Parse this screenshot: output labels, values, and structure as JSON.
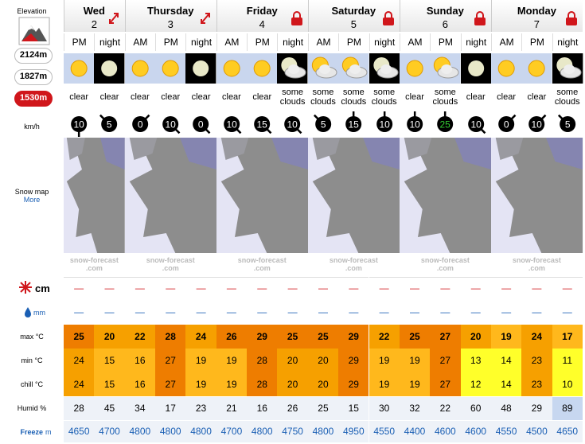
{
  "elevation_label": "Elevation",
  "elevations": [
    "2124m",
    "1827m",
    "1530m"
  ],
  "selected_elevation": 2,
  "labels": {
    "wind": "km/h",
    "snow_map": "Snow map",
    "more": "More",
    "snow": "cm",
    "rain": "mm",
    "max": "max °C",
    "min": "min °C",
    "chill": "chill °C",
    "humid": "Humid %",
    "freeze": "Freeze",
    "freeze_unit": "m"
  },
  "days": [
    {
      "name": "Wed",
      "date": 2,
      "icon": "expand",
      "periods": 2
    },
    {
      "name": "Thursday",
      "date": 3,
      "icon": "expand",
      "periods": 3
    },
    {
      "name": "Friday",
      "date": 4,
      "icon": "lock",
      "periods": 3
    },
    {
      "name": "Saturday",
      "date": 5,
      "icon": "lock",
      "periods": 3
    },
    {
      "name": "Sunday",
      "date": 6,
      "icon": "lock",
      "periods": 3
    },
    {
      "name": "Monday",
      "date": 7,
      "icon": "lock",
      "periods": 3
    }
  ],
  "periods": [
    "PM",
    "night",
    "AM",
    "PM",
    "night",
    "AM",
    "PM",
    "night",
    "AM",
    "PM",
    "night",
    "AM",
    "PM",
    "night",
    "AM",
    "PM",
    "night"
  ],
  "summary": [
    "clear",
    "clear",
    "clear",
    "clear",
    "clear",
    "clear",
    "clear",
    "some clouds",
    "some clouds",
    "some clouds",
    "some clouds",
    "clear",
    "some clouds",
    "clear",
    "clear",
    "clear",
    "some clouds"
  ],
  "wind": [
    10,
    5,
    0,
    10,
    0,
    10,
    15,
    10,
    5,
    15,
    10,
    10,
    25,
    10,
    0,
    10,
    5
  ],
  "wind_dir": [
    180,
    315,
    45,
    135,
    135,
    135,
    135,
    135,
    315,
    0,
    0,
    0,
    0,
    135,
    45,
    45,
    315
  ],
  "snow": [
    "—",
    "—",
    "—",
    "—",
    "—",
    "—",
    "—",
    "—",
    "—",
    "—",
    "—",
    "—",
    "—",
    "—",
    "—",
    "—",
    "—"
  ],
  "rain": [
    "—",
    "—",
    "—",
    "—",
    "—",
    "—",
    "—",
    "—",
    "—",
    "—",
    "—",
    "—",
    "—",
    "—",
    "—",
    "—",
    "—"
  ],
  "max": [
    25,
    20,
    22,
    28,
    24,
    26,
    29,
    25,
    25,
    29,
    22,
    25,
    27,
    20,
    19,
    24,
    17
  ],
  "min": [
    24,
    15,
    16,
    27,
    19,
    19,
    28,
    20,
    20,
    29,
    19,
    19,
    27,
    13,
    14,
    23,
    11
  ],
  "chill": [
    24,
    15,
    16,
    27,
    19,
    19,
    28,
    20,
    20,
    29,
    19,
    19,
    27,
    12,
    14,
    23,
    10
  ],
  "humid": [
    28,
    45,
    34,
    17,
    23,
    21,
    16,
    26,
    25,
    15,
    30,
    32,
    22,
    60,
    48,
    29,
    89
  ],
  "freeze": [
    4650,
    4700,
    4800,
    4800,
    4800,
    4700,
    4800,
    4750,
    4800,
    4950,
    4550,
    4400,
    4600,
    4600,
    4550,
    4500,
    4650
  ],
  "watermark": [
    "snow-forecast",
    ".com"
  ]
}
